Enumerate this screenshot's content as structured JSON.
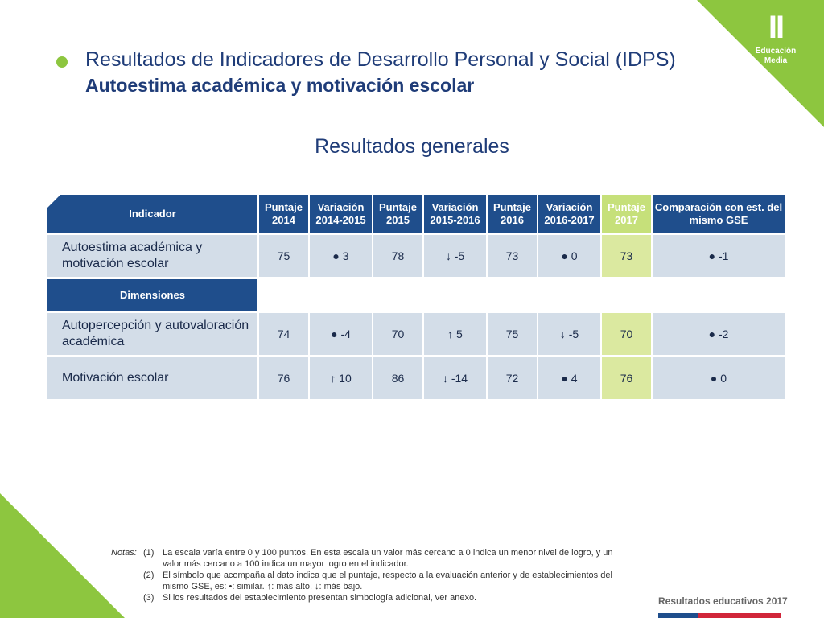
{
  "logo": {
    "numeral": "II",
    "line1": "Educación",
    "line2": "Media"
  },
  "title": {
    "line1": "Resultados de Indicadores de Desarrollo Personal y Social (IDPS)",
    "line2": "Autoestima académica y motivación escolar"
  },
  "subtitle": "Resultados generales",
  "table": {
    "headers": {
      "indicador": "Indicador",
      "p2014": "Puntaje 2014",
      "v1415": "Variación 2014-2015",
      "p2015": "Puntaje 2015",
      "v1516": "Variación 2015-2016",
      "p2016": "Puntaje 2016",
      "v1617": "Variación 2016-2017",
      "p2017": "Puntaje 2017",
      "comp": "Comparación con est. del mismo GSE"
    },
    "dimensiones_label": "Dimensiones",
    "rows": [
      {
        "label": "Autoestima académica y motivación escolar",
        "p2014": "75",
        "v1415": "● 3",
        "p2015": "78",
        "v1516": "↓ -5",
        "p2016": "73",
        "v1617": "● 0",
        "p2017": "73",
        "comp": "● -1"
      },
      {
        "label": "Autopercepción y autovaloración académica",
        "p2014": "74",
        "v1415": "● -4",
        "p2015": "70",
        "v1516": "↑ 5",
        "p2016": "75",
        "v1617": "↓ -5",
        "p2017": "70",
        "comp": "● -2"
      },
      {
        "label": "Motivación escolar",
        "p2014": "76",
        "v1415": "↑ 10",
        "p2015": "86",
        "v1516": "↓ -14",
        "p2016": "72",
        "v1617": "● 4",
        "p2017": "76",
        "comp": "● 0"
      }
    ]
  },
  "notes": {
    "label": "Notas:",
    "items": [
      {
        "num": "(1)",
        "text": "La escala varía entre 0 y 100 puntos. En esta escala un valor más cercano a 0 indica un menor nivel de logro, y un valor más cercano a 100 indica un mayor logro en el indicador."
      },
      {
        "num": "(2)",
        "text": "El símbolo que acompaña al dato indica que el puntaje, respecto a la evaluación anterior y de establecimientos del mismo GSE, es:     •: similar.                  ↑: más alto.             ↓: más bajo."
      },
      {
        "num": "(3)",
        "text": "Si los resultados del establecimiento presentan simbología adicional, ver anexo."
      }
    ]
  },
  "footer": "Resultados educativos 2017",
  "colors": {
    "accent": "#8dc63f",
    "header": "#1f4e8c",
    "row": "#d3dde8",
    "highlight": "#dbe9a0"
  }
}
